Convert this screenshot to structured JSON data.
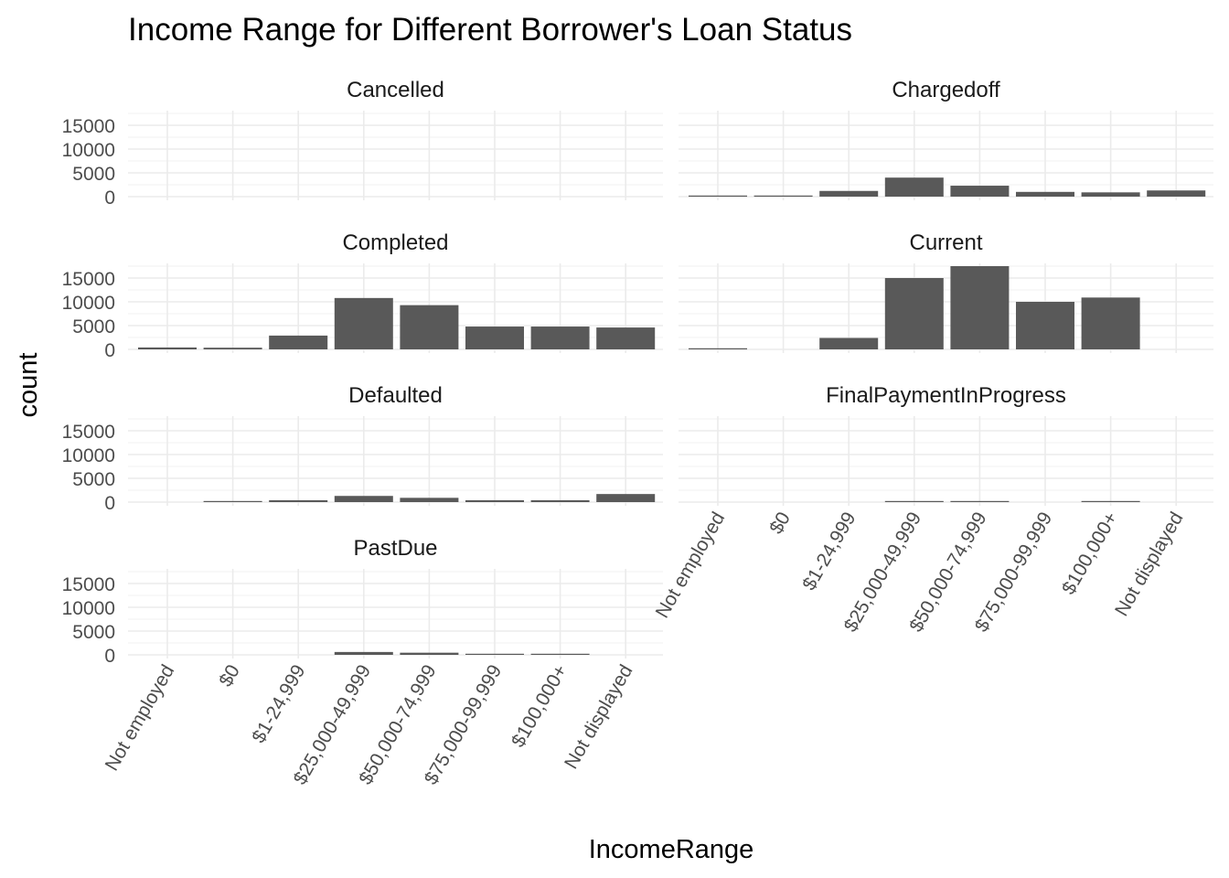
{
  "chart_data": {
    "type": "bar",
    "title": "Income Range for Different Borrower's Loan Status",
    "xlabel": "IncomeRange",
    "ylabel": "count",
    "categories": [
      "Not employed",
      "$0",
      "$1-24,999",
      "$25,000-49,999",
      "$50,000-74,999",
      "$75,000-99,999",
      "$100,000+",
      "Not displayed"
    ],
    "ylim": [
      0,
      18500
    ],
    "yticks": [
      0,
      5000,
      10000,
      15000
    ],
    "ytick_labels": [
      "0",
      "5000",
      "10000",
      "15000"
    ],
    "grid": true,
    "facets": [
      {
        "name": "Cancelled",
        "values": [
          0,
          0,
          0,
          0,
          0,
          0,
          0,
          0
        ]
      },
      {
        "name": "Chargedoff",
        "values": [
          150,
          200,
          1200,
          4000,
          2300,
          1000,
          900,
          1300
        ]
      },
      {
        "name": "Completed",
        "values": [
          400,
          350,
          2900,
          10800,
          9300,
          4800,
          4800,
          4600
        ]
      },
      {
        "name": "Current",
        "values": [
          200,
          0,
          2400,
          15000,
          17500,
          10000,
          10900,
          0
        ]
      },
      {
        "name": "Defaulted",
        "values": [
          0,
          200,
          400,
          1300,
          900,
          400,
          400,
          1700
        ]
      },
      {
        "name": "FinalPaymentInProgress",
        "values": [
          0,
          0,
          0,
          60,
          60,
          0,
          50,
          0
        ]
      },
      {
        "name": "PastDue",
        "values": [
          0,
          0,
          0,
          600,
          450,
          200,
          200,
          0
        ]
      }
    ]
  }
}
